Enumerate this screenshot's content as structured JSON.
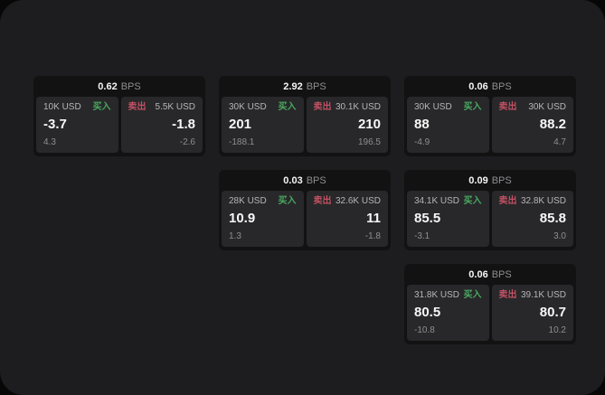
{
  "labels": {
    "buy": "买入",
    "sell": "卖出",
    "bps_unit": "BPS"
  },
  "colors": {
    "buy_green": "#4aa861",
    "sell_red": "#c25063",
    "surface": "#1d1d1f",
    "card_bg": "#121213",
    "panel_bg": "#28282a"
  },
  "cards": [
    {
      "bps": "0.62",
      "buy": {
        "amount": "10K USD",
        "price": "-3.7",
        "delta": "4.3"
      },
      "sell": {
        "amount": "5.5K USD",
        "price": "-1.8",
        "delta": "-2.6"
      }
    },
    {
      "bps": "2.92",
      "buy": {
        "amount": "30K USD",
        "price": "201",
        "delta": "-188.1"
      },
      "sell": {
        "amount": "30.1K USD",
        "price": "210",
        "delta": "196.5"
      }
    },
    {
      "bps": "0.06",
      "buy": {
        "amount": "30K USD",
        "price": "88",
        "delta": "-4.9"
      },
      "sell": {
        "amount": "30K USD",
        "price": "88.2",
        "delta": "4.7"
      }
    },
    {
      "bps": "0.03",
      "buy": {
        "amount": "28K USD",
        "price": "10.9",
        "delta": "1.3"
      },
      "sell": {
        "amount": "32.6K USD",
        "price": "11",
        "delta": "-1.8"
      }
    },
    {
      "bps": "0.09",
      "buy": {
        "amount": "34.1K USD",
        "price": "85.5",
        "delta": "-3.1"
      },
      "sell": {
        "amount": "32.8K USD",
        "price": "85.8",
        "delta": "3.0"
      }
    },
    {
      "bps": "0.06",
      "buy": {
        "amount": "31.8K USD",
        "price": "80.5",
        "delta": "-10.8"
      },
      "sell": {
        "amount": "39.1K USD",
        "price": "80.7",
        "delta": "10.2"
      }
    }
  ]
}
